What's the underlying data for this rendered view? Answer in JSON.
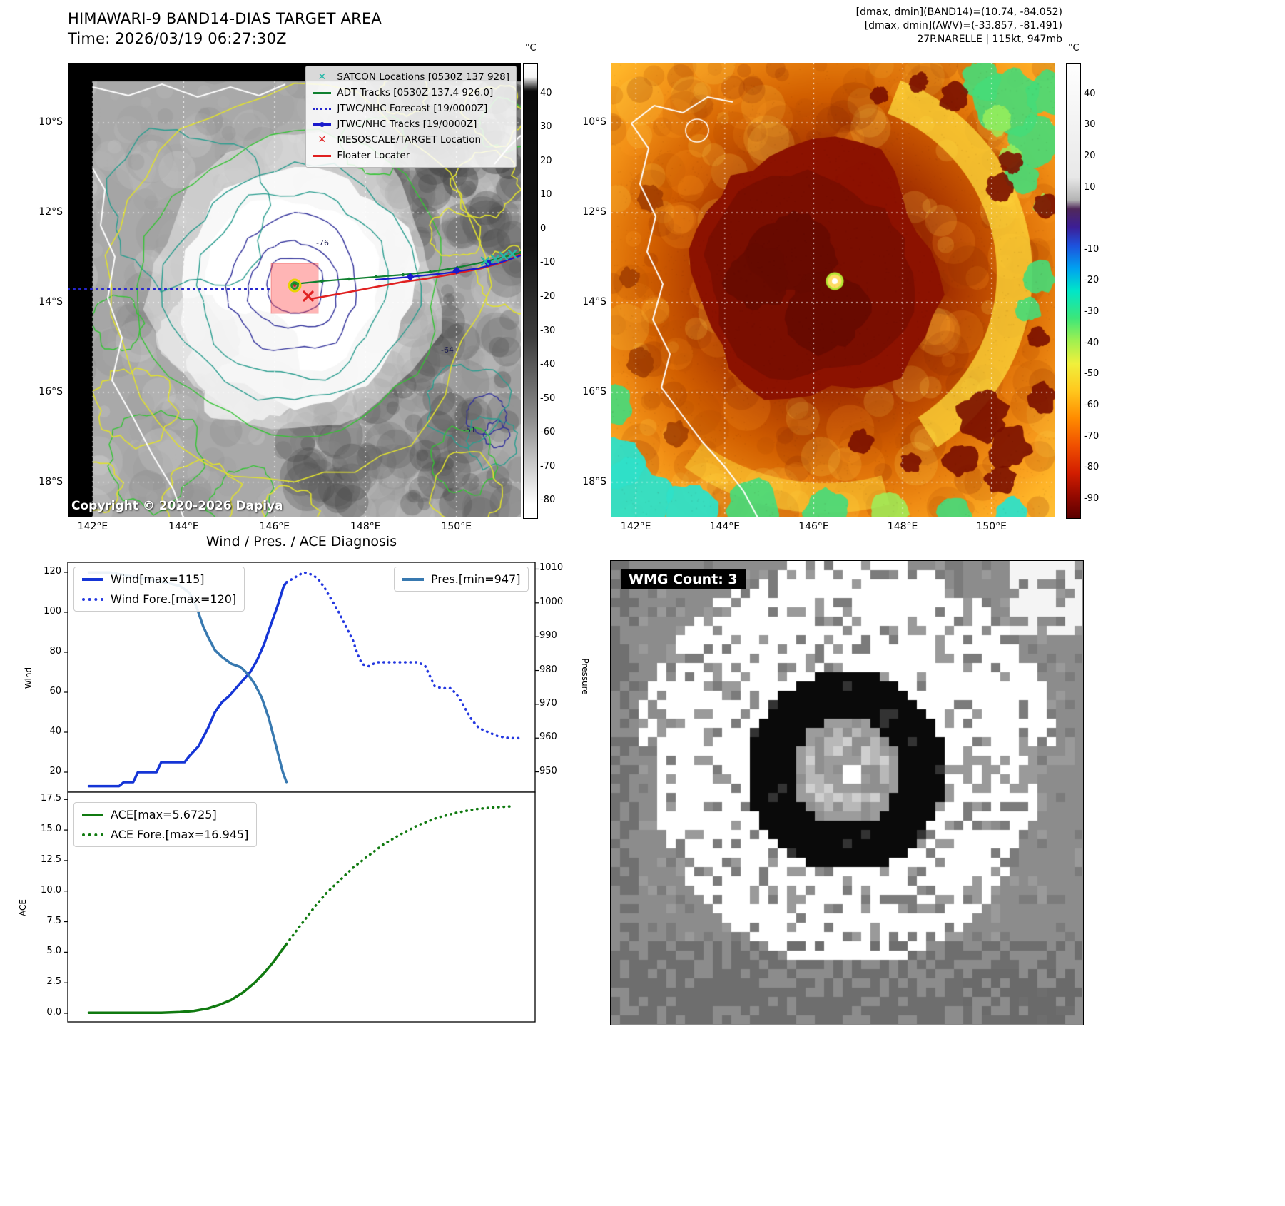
{
  "band14": {
    "title": "HIMAWARI-9 BAND14-DIAS TARGET AREA",
    "time_label": "Time: 2026/03/19 06:27:30Z",
    "copyright": "Copyright © 2020-2026 Dapiya",
    "colorbar_unit": "°C",
    "colorbar_ticks": [
      "40",
      "30",
      "20",
      "10",
      "0",
      "-10",
      "-20",
      "-30",
      "-40",
      "-50",
      "-60",
      "-70",
      "-80"
    ],
    "colorbar_range": [
      49,
      -85
    ],
    "colorbar_stops": [
      [
        "#ffffff",
        0
      ],
      [
        "#f5f5f5",
        3
      ],
      [
        "#0a0a0a",
        6
      ],
      [
        "#141414",
        40
      ],
      [
        "#3c3c3c",
        60
      ],
      [
        "#8c8c8c",
        78
      ],
      [
        "#ffffff",
        97
      ],
      [
        "#ffffff",
        100
      ]
    ],
    "x_ticks": [
      "142°E",
      "144°E",
      "146°E",
      "148°E",
      "150°E"
    ],
    "y_ticks": [
      "10°S",
      "12°S",
      "14°S",
      "16°S",
      "18°S"
    ],
    "legend": [
      {
        "marker": "x",
        "color": "#26b8a8",
        "label": "SATCON Locations [0530Z 137 928]"
      },
      {
        "marker": "line",
        "color": "#108030",
        "label": "ADT Tracks [0530Z 137.4 926.0]"
      },
      {
        "marker": "dotted",
        "color": "#2525cc",
        "label": "JTWC/NHC Forecast [19/0000Z]"
      },
      {
        "marker": "line-dot",
        "color": "#1a1acc",
        "label": "JTWC/NHC Tracks [19/0000Z]"
      },
      {
        "marker": "x",
        "color": "#e02020",
        "label": "MESOSCALE/TARGET Location"
      },
      {
        "marker": "line",
        "color": "#e02020",
        "label": "Floater Locater"
      }
    ],
    "contour_labels": [
      "-76",
      "-64",
      "-51"
    ]
  },
  "awv": {
    "header_lines": [
      "[dmax, dmin](BAND14)=(10.74, -84.052)",
      "[dmax, dmin](AWV)=(-33.857, -81.491)",
      "27P.NARELLE | 115kt, 947mb"
    ],
    "colorbar_unit": "°C",
    "colorbar_ticks": [
      "40",
      "30",
      "20",
      "10",
      "-10",
      "-20",
      "-30",
      "-40",
      "-50",
      "-60",
      "-70",
      "-80",
      "-90"
    ],
    "colorbar_range": [
      50,
      -96
    ],
    "colorbar_stops": [
      [
        "#ffffff",
        0
      ],
      [
        "#e8e8e8",
        25
      ],
      [
        "#b4b4b4",
        30
      ],
      [
        "#50285a",
        32
      ],
      [
        "#3c1e96",
        36
      ],
      [
        "#1e50dc",
        40
      ],
      [
        "#00a0f0",
        45
      ],
      [
        "#00e6c8",
        50
      ],
      [
        "#3ce67a",
        56
      ],
      [
        "#a0f050",
        61
      ],
      [
        "#f0f03c",
        66
      ],
      [
        "#ffc81e",
        72
      ],
      [
        "#ff8c00",
        78
      ],
      [
        "#f05000",
        84
      ],
      [
        "#d21e00",
        90
      ],
      [
        "#960a00",
        95
      ],
      [
        "#5a0000",
        100
      ]
    ],
    "x_ticks": [
      "142°E",
      "144°E",
      "146°E",
      "148°E",
      "150°E"
    ],
    "y_ticks": [
      "10°S",
      "12°S",
      "14°S",
      "16°S",
      "18°S"
    ]
  },
  "wmg": {
    "count_label": "WMG Count: 3"
  },
  "chart_data": [
    {
      "type": "line",
      "title": "Wind / Pres. / ACE Diagnosis",
      "axes": {
        "left": {
          "label": "Wind",
          "ticks": [
            "20",
            "40",
            "60",
            "80",
            "100",
            "120"
          ],
          "range": [
            10,
            125
          ]
        },
        "right": {
          "label": "Pressure",
          "ticks": [
            "950",
            "960",
            "970",
            "980",
            "990",
            "1000",
            "1010"
          ],
          "range": [
            944,
            1012
          ]
        }
      },
      "series": [
        {
          "name": "Wind[max=115]",
          "axis": "left",
          "style": "solid",
          "color": "#1535d6",
          "points": [
            [
              0.045,
              13
            ],
            [
              0.11,
              13
            ],
            [
              0.12,
              15
            ],
            [
              0.14,
              15
            ],
            [
              0.15,
              20
            ],
            [
              0.19,
              20
            ],
            [
              0.2,
              25
            ],
            [
              0.25,
              25
            ],
            [
              0.26,
              28
            ],
            [
              0.28,
              33
            ],
            [
              0.3,
              42
            ],
            [
              0.315,
              50
            ],
            [
              0.33,
              55
            ],
            [
              0.345,
              58
            ],
            [
              0.36,
              62
            ],
            [
              0.375,
              66
            ],
            [
              0.39,
              70
            ],
            [
              0.405,
              76
            ],
            [
              0.42,
              84
            ],
            [
              0.435,
              94
            ],
            [
              0.45,
              104
            ],
            [
              0.462,
              113
            ],
            [
              0.468,
              115
            ]
          ]
        },
        {
          "name": "Wind Fore.[max=120]",
          "axis": "left",
          "style": "dotted",
          "color": "#2438e0",
          "points": [
            [
              0.468,
              115
            ],
            [
              0.49,
              118
            ],
            [
              0.505,
              120
            ],
            [
              0.52,
              119
            ],
            [
              0.535,
              117
            ],
            [
              0.55,
              112
            ],
            [
              0.565,
              106
            ],
            [
              0.58,
              100
            ],
            [
              0.595,
              93
            ],
            [
              0.61,
              86
            ],
            [
              0.62,
              79
            ],
            [
              0.63,
              74
            ],
            [
              0.645,
              73
            ],
            [
              0.66,
              75
            ],
            [
              0.69,
              75
            ],
            [
              0.72,
              75
            ],
            [
              0.75,
              75
            ],
            [
              0.765,
              73
            ],
            [
              0.775,
              68
            ],
            [
              0.785,
              63
            ],
            [
              0.8,
              62
            ],
            [
              0.82,
              62
            ],
            [
              0.835,
              58
            ],
            [
              0.85,
              52
            ],
            [
              0.865,
              46
            ],
            [
              0.88,
              42
            ],
            [
              0.9,
              40
            ],
            [
              0.92,
              38
            ],
            [
              0.945,
              37
            ],
            [
              0.965,
              37
            ]
          ]
        },
        {
          "name": "Pres.[min=947]",
          "axis": "right",
          "style": "solid",
          "color": "#3879b0",
          "points": [
            [
              0.045,
              1009
            ],
            [
              0.09,
              1009
            ],
            [
              0.13,
              1008
            ],
            [
              0.17,
              1007
            ],
            [
              0.21,
              1006
            ],
            [
              0.24,
              1005
            ],
            [
              0.26,
              1003
            ],
            [
              0.275,
              999
            ],
            [
              0.29,
              993
            ],
            [
              0.3,
              990
            ],
            [
              0.315,
              986
            ],
            [
              0.33,
              984
            ],
            [
              0.35,
              982
            ],
            [
              0.37,
              981
            ],
            [
              0.385,
              979
            ],
            [
              0.4,
              976
            ],
            [
              0.415,
              972
            ],
            [
              0.43,
              966
            ],
            [
              0.445,
              958
            ],
            [
              0.46,
              950
            ],
            [
              0.468,
              947
            ]
          ]
        }
      ]
    },
    {
      "type": "line",
      "axes": {
        "left": {
          "label": "ACE",
          "ticks": [
            "0.0",
            "2.5",
            "5.0",
            "7.5",
            "10.0",
            "12.5",
            "15.0",
            "17.5"
          ],
          "range": [
            -0.7,
            18.1
          ]
        }
      },
      "series": [
        {
          "name": "ACE[max=5.6725]",
          "axis": "left",
          "style": "solid",
          "color": "#107a10",
          "points": [
            [
              0.045,
              0.05
            ],
            [
              0.12,
              0.05
            ],
            [
              0.2,
              0.05
            ],
            [
              0.24,
              0.1
            ],
            [
              0.27,
              0.2
            ],
            [
              0.3,
              0.4
            ],
            [
              0.325,
              0.7
            ],
            [
              0.35,
              1.1
            ],
            [
              0.375,
              1.7
            ],
            [
              0.4,
              2.5
            ],
            [
              0.42,
              3.3
            ],
            [
              0.44,
              4.2
            ],
            [
              0.455,
              5.0
            ],
            [
              0.468,
              5.6725
            ]
          ]
        },
        {
          "name": "ACE Fore.[max=16.945]",
          "axis": "left",
          "style": "dotted",
          "color": "#107a10",
          "points": [
            [
              0.468,
              5.6725
            ],
            [
              0.49,
              6.8
            ],
            [
              0.51,
              7.8
            ],
            [
              0.53,
              8.8
            ],
            [
              0.555,
              9.9
            ],
            [
              0.58,
              10.8
            ],
            [
              0.61,
              11.9
            ],
            [
              0.64,
              12.8
            ],
            [
              0.675,
              13.8
            ],
            [
              0.71,
              14.6
            ],
            [
              0.75,
              15.4
            ],
            [
              0.79,
              16.0
            ],
            [
              0.83,
              16.4
            ],
            [
              0.87,
              16.7
            ],
            [
              0.91,
              16.85
            ],
            [
              0.955,
              16.945
            ]
          ]
        }
      ]
    }
  ]
}
